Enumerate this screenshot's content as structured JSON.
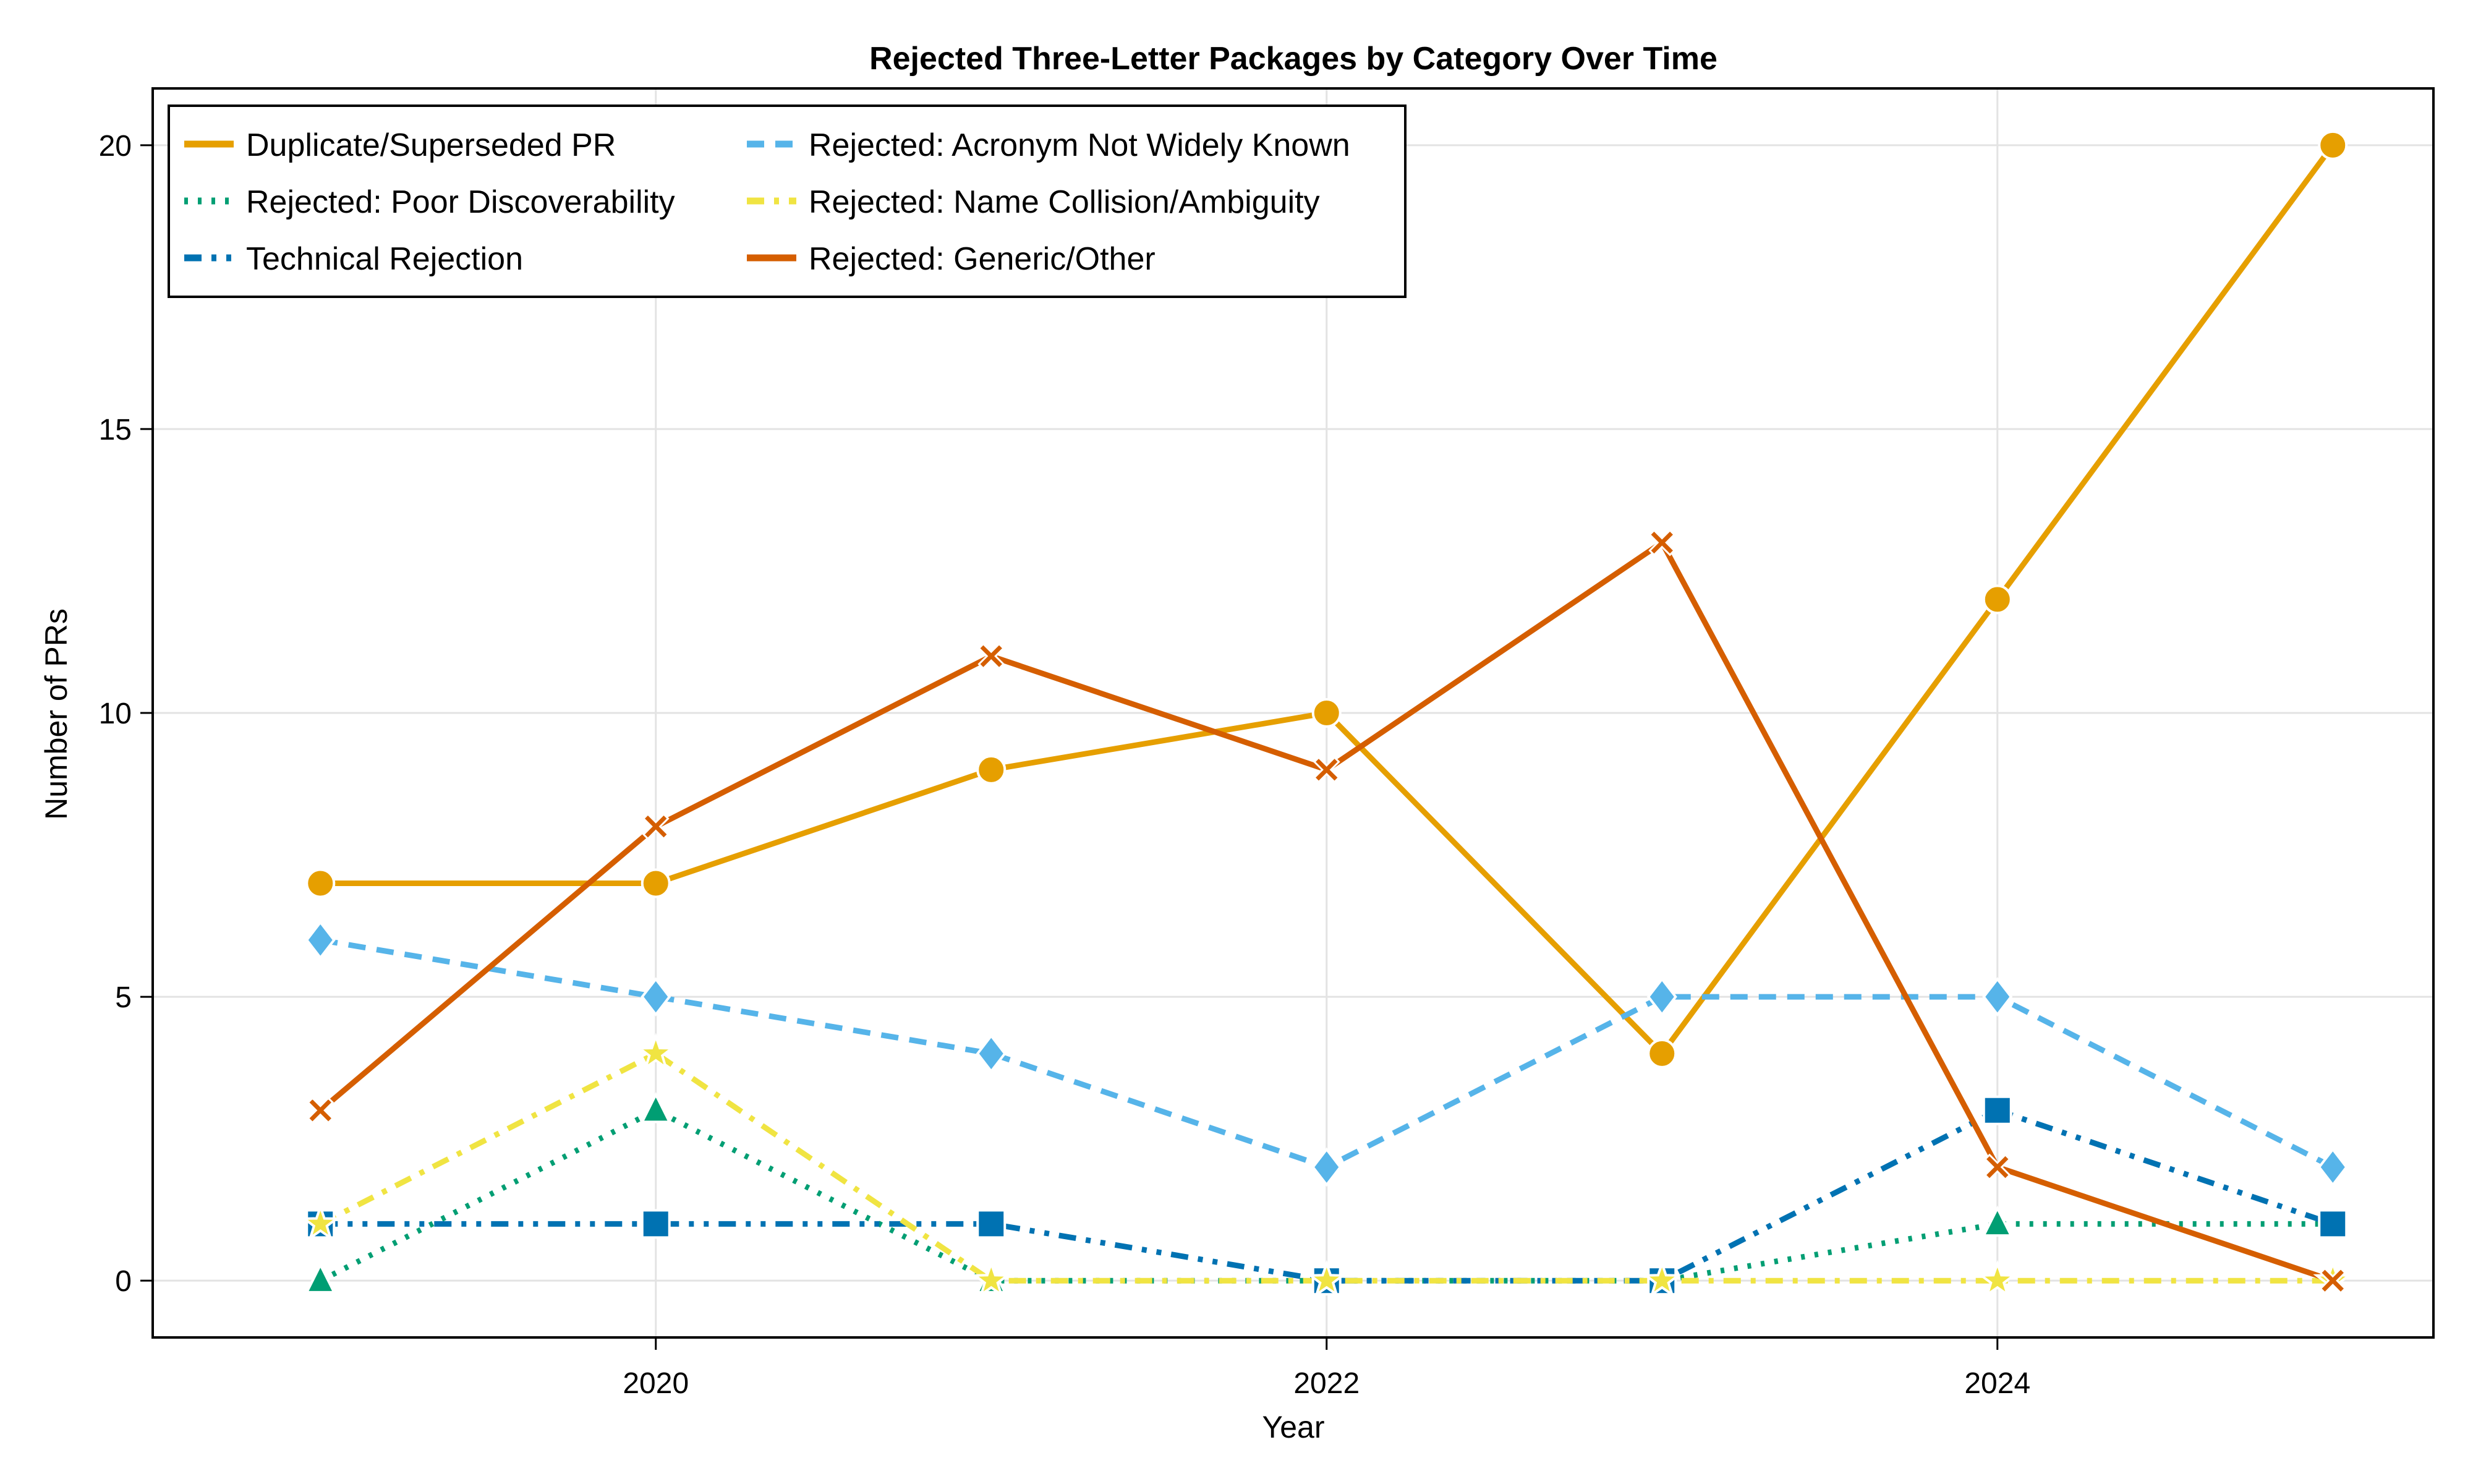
{
  "chart_data": {
    "type": "line",
    "title": "Rejected Three-Letter Packages by Category Over Time",
    "xlabel": "Year",
    "ylabel": "Number of PRs",
    "x": [
      2019,
      2020,
      2021,
      2022,
      2023,
      2024,
      2025
    ],
    "xlim": [
      2018.5,
      2025.3
    ],
    "ylim": [
      -1,
      21
    ],
    "xticks": [
      2020,
      2022,
      2024
    ],
    "xtick_labels": [
      "2020",
      "2022",
      "2024"
    ],
    "yticks": [
      0,
      5,
      10,
      15,
      20
    ],
    "ytick_labels": [
      "0",
      "5",
      "10",
      "15",
      "20"
    ],
    "grid": true,
    "legend_position": "top-left",
    "legend_columns": 2,
    "series": [
      {
        "name": "Duplicate/Superseded PR",
        "color": "#E69F00",
        "linestyle": "solid",
        "marker": "circle",
        "values": [
          7,
          7,
          9,
          10,
          4,
          12,
          20
        ]
      },
      {
        "name": "Rejected: Poor Discoverability",
        "color": "#009E73",
        "linestyle": "dot",
        "marker": "triangle",
        "values": [
          0,
          3,
          0,
          0,
          0,
          1,
          1
        ]
      },
      {
        "name": "Technical Rejection",
        "color": "#0072B2",
        "linestyle": "dashdotdot",
        "marker": "square",
        "values": [
          1,
          1,
          1,
          0,
          0,
          3,
          1
        ]
      },
      {
        "name": "Rejected: Acronym Not Widely Known",
        "color": "#56B4E9",
        "linestyle": "dash",
        "marker": "diamond",
        "values": [
          6,
          5,
          4,
          2,
          5,
          5,
          2
        ]
      },
      {
        "name": "Rejected: Name Collision/Ambiguity",
        "color": "#F0E442",
        "linestyle": "dashdot",
        "marker": "star",
        "values": [
          1,
          4,
          0,
          0,
          0,
          0,
          0
        ]
      },
      {
        "name": "Rejected: Generic/Other",
        "color": "#D55E00",
        "linestyle": "solid",
        "marker": "x",
        "values": [
          3,
          8,
          11,
          9,
          13,
          2,
          0
        ]
      }
    ]
  }
}
